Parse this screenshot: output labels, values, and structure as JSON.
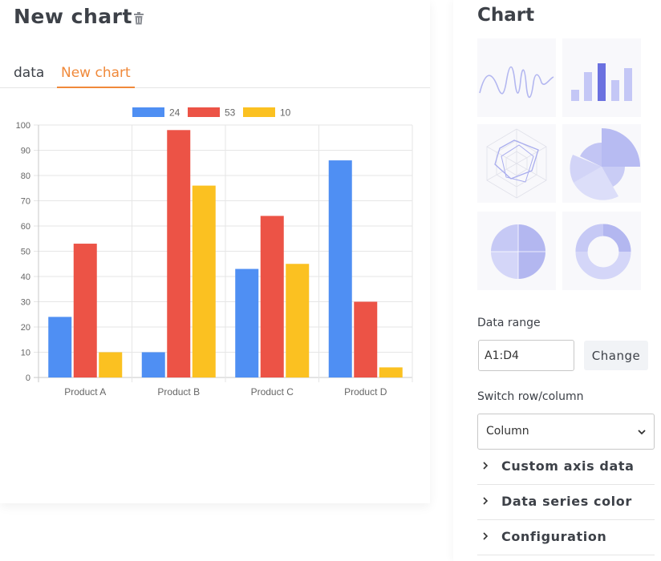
{
  "header": {
    "title": "New chart"
  },
  "tabs": [
    {
      "label": "data"
    },
    {
      "label": "New chart"
    }
  ],
  "chart_data": {
    "type": "bar",
    "categories": [
      "Product A",
      "Product B",
      "Product C",
      "Product D"
    ],
    "series": [
      {
        "name": "24",
        "color": "#4f8ff3",
        "values": [
          24,
          10,
          43,
          86
        ]
      },
      {
        "name": "53",
        "color": "#ec5346",
        "values": [
          53,
          98,
          64,
          30
        ]
      },
      {
        "name": "10",
        "color": "#fbc121",
        "values": [
          10,
          76,
          45,
          4
        ]
      }
    ],
    "ylim": [
      0,
      100
    ],
    "yticks": [
      0,
      10,
      20,
      30,
      40,
      50,
      60,
      70,
      80,
      90,
      100
    ],
    "legend": "top",
    "grid": true
  },
  "sidebar": {
    "title": "Chart",
    "chart_types": [
      {
        "icon": "line-chart-icon"
      },
      {
        "icon": "bar-chart-icon"
      },
      {
        "icon": "radar-chart-icon"
      },
      {
        "icon": "polar-area-chart-icon"
      },
      {
        "icon": "pie-chart-icon"
      },
      {
        "icon": "doughnut-chart-icon"
      }
    ],
    "data_range": {
      "label": "Data range",
      "value": "A1:D4",
      "button": "Change"
    },
    "switch": {
      "label": "Switch row/column",
      "selected": "Column"
    },
    "sections": [
      {
        "label": "Custom axis data"
      },
      {
        "label": "Data series color"
      },
      {
        "label": "Configuration"
      }
    ],
    "accent": "#b3b7f0"
  }
}
